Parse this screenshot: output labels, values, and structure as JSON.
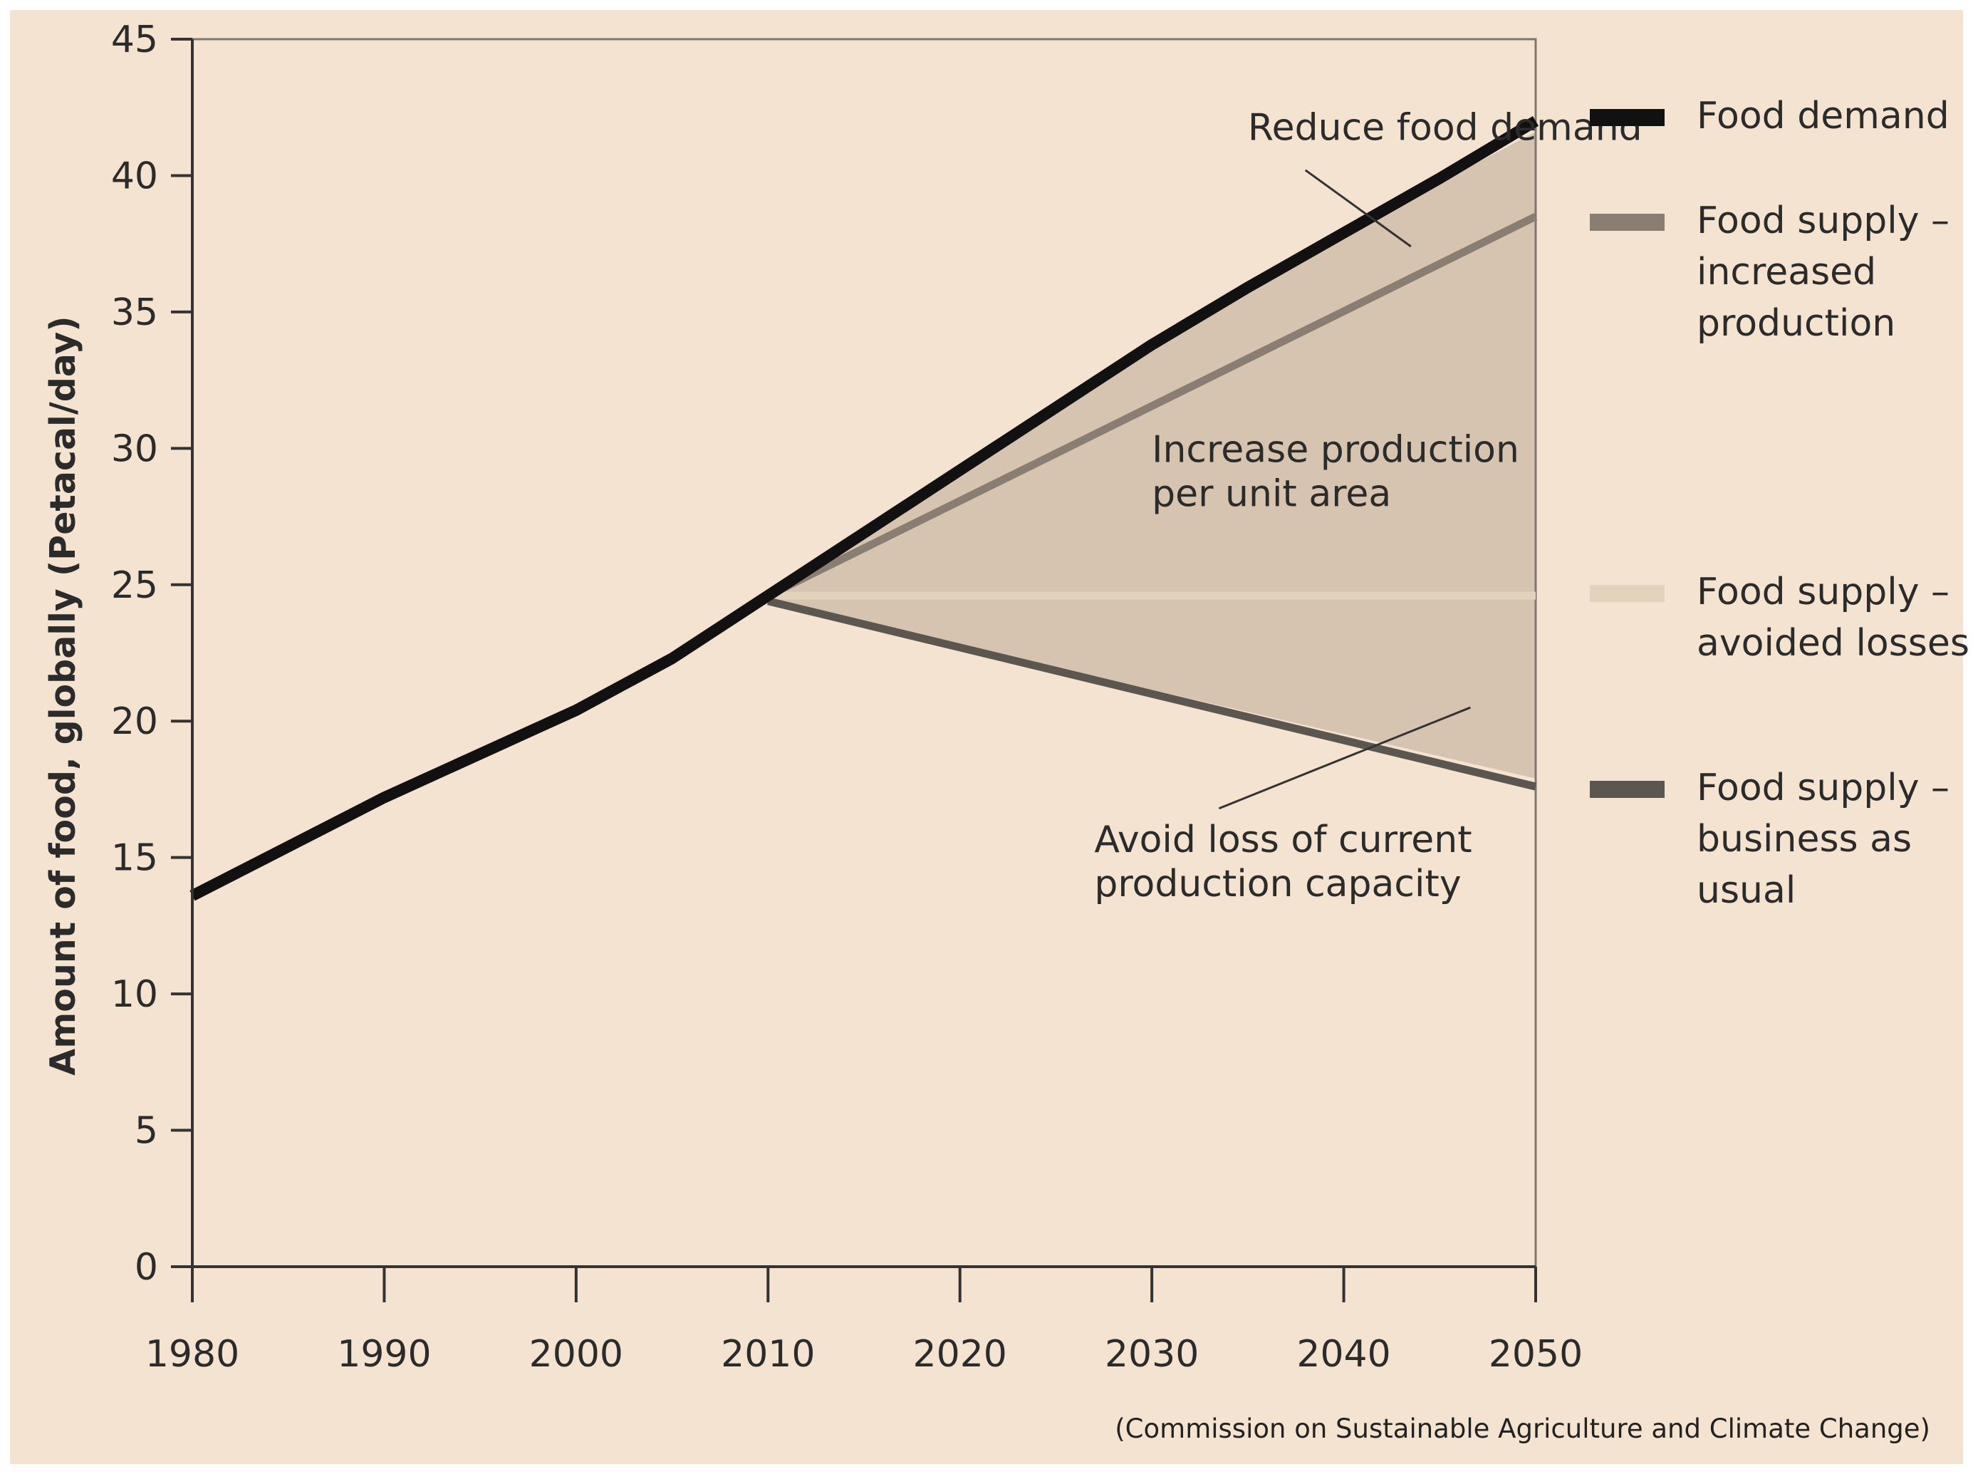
{
  "chart_data": {
    "type": "line",
    "ylabel": "Amount of food, globally (Petacal/day)",
    "xlabel": "",
    "xlim": [
      1980,
      2050
    ],
    "ylim": [
      0,
      45
    ],
    "x_ticks": [
      1980,
      1990,
      2000,
      2010,
      2020,
      2030,
      2040,
      2050
    ],
    "y_ticks": [
      0,
      5,
      10,
      15,
      20,
      25,
      30,
      35,
      40,
      45
    ],
    "grid": false,
    "series": [
      {
        "name": "Food demand",
        "color": "#111111",
        "x": [
          1980,
          1985,
          1990,
          1995,
          2000,
          2005,
          2010,
          2015,
          2020,
          2025,
          2030,
          2035,
          2040,
          2045,
          2050
        ],
        "values": [
          13.6,
          15.4,
          17.2,
          18.8,
          20.4,
          22.3,
          24.6,
          26.9,
          29.2,
          31.5,
          33.8,
          35.9,
          37.9,
          39.9,
          42.0
        ]
      },
      {
        "name": "Food supply – increased production",
        "legend_lines": [
          "Food supply –",
          "increased",
          "production"
        ],
        "color": "#8a7e72",
        "x": [
          2010,
          2050
        ],
        "values": [
          24.6,
          38.5
        ]
      },
      {
        "name": "Food supply – avoided losses",
        "legend_lines": [
          "Food supply –",
          "avoided losses"
        ],
        "color": "#e3d3bd",
        "x": [
          2010,
          2050
        ],
        "values": [
          24.6,
          24.6
        ]
      },
      {
        "name": "Food supply – business as usual",
        "legend_lines": [
          "Food supply –",
          "business as",
          "usual"
        ],
        "color": "#5c5651",
        "x": [
          2010,
          2050
        ],
        "values": [
          24.4,
          17.6
        ]
      }
    ],
    "shaded_region": {
      "color": "#d6c4b0",
      "upper": {
        "x": [
          2010,
          2020,
          2030,
          2040,
          2050
        ],
        "values": [
          24.6,
          29.2,
          33.8,
          37.9,
          41.6
        ]
      },
      "lower": {
        "x": [
          2010,
          2050
        ],
        "values": [
          24.4,
          17.9
        ]
      }
    },
    "annotations": [
      {
        "lines": [
          "Reduce food demand"
        ],
        "x": 2035,
        "y": 41.3,
        "anchor": "start",
        "pointer": [
          [
            2038,
            40.2
          ],
          [
            2043.5,
            37.4
          ]
        ]
      },
      {
        "lines": [
          "Increase production",
          "per unit area"
        ],
        "x": 2030,
        "y": 29.5,
        "anchor": "start"
      },
      {
        "lines": [
          "Avoid loss of current",
          "production capacity"
        ],
        "x": 2027,
        "y": 15.2,
        "anchor": "start",
        "pointer": [
          [
            2033.5,
            16.8
          ],
          [
            2046.6,
            20.5
          ]
        ]
      }
    ],
    "source": "(Commission on Sustainable Agriculture and Climate Change)",
    "background": "#f5e3d1"
  }
}
